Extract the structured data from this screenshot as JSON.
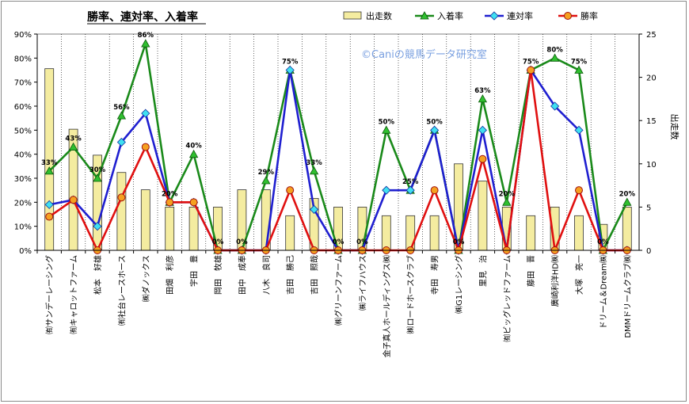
{
  "chart_data": {
    "type": "bar+line",
    "title": "勝率、連対率、入着率",
    "watermark": "©Caniの競馬データ研究室",
    "y2label": "出走数",
    "ylim": [
      0,
      90
    ],
    "y2lim": [
      0,
      25
    ],
    "yticks": [
      "0%",
      "10%",
      "20%",
      "30%",
      "40%",
      "50%",
      "60%",
      "70%",
      "80%",
      "90%"
    ],
    "y2ticks": [
      "0",
      "5",
      "10",
      "15",
      "20",
      "25"
    ],
    "categories": [
      "㈲サンデーレーシング",
      "㈲キャロットファーム",
      "松本　好雄",
      "㈲社台レースホース",
      "㈱ダノックス",
      "田畑　利彦",
      "宇田　豊",
      "岡田　牧雄",
      "田中　成奉",
      "八木　良司",
      "吉田　勝己",
      "吉田　照哉",
      "㈱グリーンファーム",
      "㈱ライフハウス",
      "金子真人ホールディングス㈱",
      "㈱ロードホースクラブ",
      "寺田　寿男",
      "㈱G1レーシング",
      "里見　治",
      "㈲ビッグレッドファーム",
      "藤田　晋",
      "廣崎利洋HD㈱",
      "大塚　亮一",
      "ドリーム＆Dream㈱",
      "DMMドリームクラブ㈱"
    ],
    "series": [
      {
        "name": "出走数",
        "kind": "bar",
        "axis": "right",
        "color": "#f4eca0",
        "values": [
          21,
          14,
          11,
          9,
          7,
          5,
          5,
          5,
          7,
          7,
          4,
          6,
          5,
          5,
          4,
          4,
          4,
          10,
          8,
          5,
          4,
          5,
          4,
          3,
          5
        ]
      },
      {
        "name": "入着率",
        "kind": "line",
        "axis": "left",
        "color": "#1a8a1a",
        "marker": "triangle",
        "values": [
          33,
          43,
          30,
          56,
          86,
          20,
          40,
          0,
          0,
          29,
          75,
          33,
          0,
          0,
          50,
          25,
          50,
          0,
          63,
          20,
          75,
          80,
          75,
          0,
          20
        ]
      },
      {
        "name": "連対率",
        "kind": "line",
        "axis": "left",
        "color": "#1f1fd0",
        "marker": "diamond",
        "values": [
          19,
          21,
          10,
          45,
          57,
          20,
          20,
          0,
          0,
          0,
          75,
          17,
          0,
          0,
          25,
          25,
          50,
          0,
          50,
          0,
          75,
          60,
          50,
          0,
          0
        ]
      },
      {
        "name": "勝率",
        "kind": "line",
        "axis": "left",
        "color": "#e01010",
        "marker": "circle",
        "values": [
          14,
          21,
          0,
          22,
          43,
          20,
          20,
          0,
          0,
          0,
          25,
          0,
          0,
          0,
          0,
          0,
          25,
          0,
          38,
          0,
          75,
          0,
          25,
          0,
          0
        ]
      }
    ],
    "data_labels": [
      "33%",
      "43%",
      "30%",
      "56%",
      "86%",
      "20%",
      "40%",
      "0%",
      "0%",
      "29%",
      "75%",
      "33%",
      "0%",
      "0%",
      "50%",
      "25%",
      "50%",
      "0%",
      "63%",
      "20%",
      "75%",
      "80%",
      "75%",
      "0%",
      "20%"
    ],
    "legend_position": "top-right",
    "grid": true
  }
}
